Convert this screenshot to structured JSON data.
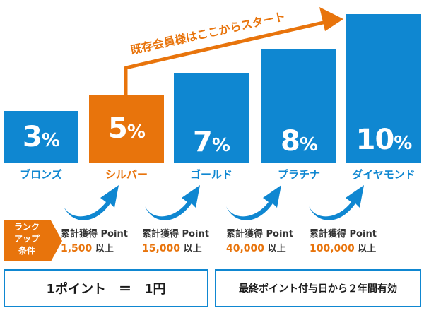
{
  "colors": {
    "blue": "#0f87d1",
    "orange": "#e8740c",
    "text": "#333333"
  },
  "headline": "既存会員様はここからスタート",
  "ranks": [
    {
      "name": "ブロンズ",
      "rate": "3",
      "unit": "%",
      "highlight": false,
      "cond_label": "",
      "cond_value": "",
      "cond_suffix": ""
    },
    {
      "name": "シルバー",
      "rate": "5",
      "unit": "%",
      "highlight": true,
      "cond_label": "累計獲得 Point",
      "cond_value": "1,500",
      "cond_suffix": "以上"
    },
    {
      "name": "ゴールド",
      "rate": "7",
      "unit": "%",
      "highlight": false,
      "cond_label": "累計獲得 Point",
      "cond_value": "15,000",
      "cond_suffix": "以上"
    },
    {
      "name": "プラチナ",
      "rate": "8",
      "unit": "%",
      "highlight": false,
      "cond_label": "累計獲得 Point",
      "cond_value": "40,000",
      "cond_suffix": "以上"
    },
    {
      "name": "ダイヤモンド",
      "rate": "10",
      "unit": "%",
      "highlight": false,
      "cond_label": "累計獲得 Point",
      "cond_value": "100,000",
      "cond_suffix": "以上"
    }
  ],
  "condition_tag": {
    "line1": "ランク",
    "line2": "アップ",
    "line3": "条件"
  },
  "footer": {
    "conversion": "1ポイント　＝　1円",
    "validity": "最終ポイント付与日から２年間有効"
  }
}
